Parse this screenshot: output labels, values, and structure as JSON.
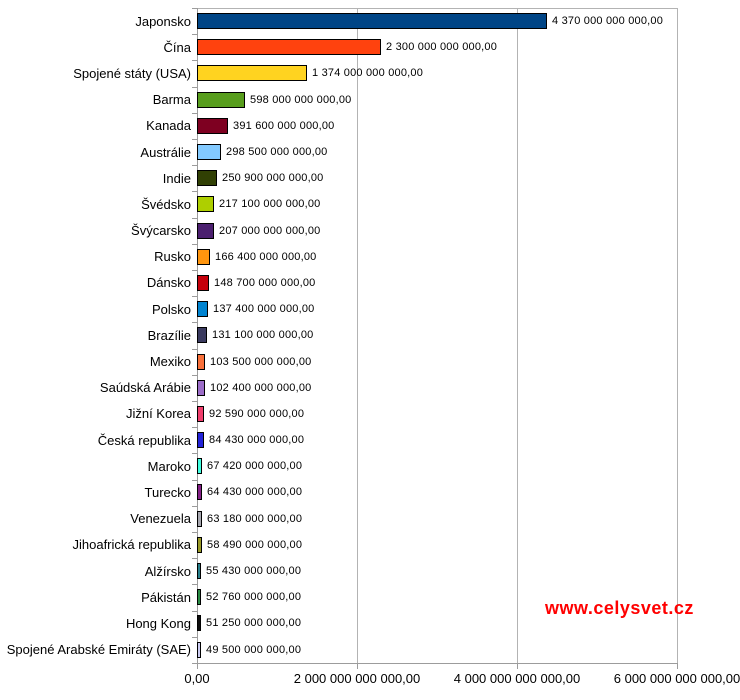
{
  "chart_data": {
    "type": "bar",
    "orientation": "horizontal",
    "title": "",
    "xlabel": "",
    "ylabel": "",
    "xlim": [
      0,
      6000000000000
    ],
    "grid": true,
    "legend": false,
    "number_format": "czech (space thousands, comma decimals)",
    "categories": [
      "Japonsko",
      "Čína",
      "Spojené státy (USA)",
      "Barma",
      "Kanada",
      "Austrálie",
      "Indie",
      "Švédsko",
      "Švýcarsko",
      "Rusko",
      "Dánsko",
      "Polsko",
      "Brazílie",
      "Mexiko",
      "Saúdská Arábie",
      "Jižní Korea",
      "Česká republika",
      "Maroko",
      "Turecko",
      "Venezuela",
      "Jihoafrická republika",
      "Alžírsko",
      "Pákistán",
      "Hong Kong",
      "Spojené Arabské Emiráty (SAE)"
    ],
    "values": [
      4370000000000,
      2300000000000,
      1374000000000,
      598000000000,
      391600000000,
      298500000000,
      250900000000,
      217100000000,
      207000000000,
      166400000000,
      148700000000,
      137400000000,
      131100000000,
      103500000000,
      102400000000,
      92590000000,
      84430000000,
      67420000000,
      64430000000,
      63180000000,
      58490000000,
      55430000000,
      52760000000,
      51250000000,
      49500000000
    ],
    "value_labels": [
      "4 370 000 000 000,00",
      "2 300 000 000 000,00",
      "1 374 000 000 000,00",
      "598 000 000 000,00",
      "391 600 000 000,00",
      "298 500 000 000,00",
      "250 900 000 000,00",
      "217 100 000 000,00",
      "207 000 000 000,00",
      "166 400 000 000,00",
      "148 700 000 000,00",
      "137 400 000 000,00",
      "131 100 000 000,00",
      "103 500 000 000,00",
      "102 400 000 000,00",
      "92 590 000 000,00",
      "84 430 000 000,00",
      "67 420 000 000,00",
      "64 430 000 000,00",
      "63 180 000 000,00",
      "58 490 000 000,00",
      "55 430 000 000,00",
      "52 760 000 000,00",
      "51 250 000 000,00",
      "49 500 000 000,00"
    ],
    "bar_colors": [
      "#004586",
      "#ff420e",
      "#ffd320",
      "#579d1c",
      "#7e0021",
      "#83caff",
      "#314004",
      "#aecf00",
      "#4b1f6f",
      "#ff950e",
      "#c5000b",
      "#0084d1",
      "#3a3a5f",
      "#f9703a",
      "#9c6dc8",
      "#f03e6c",
      "#2222d8",
      "#40ffe0",
      "#852187",
      "#a8a8b0",
      "#9a9a28",
      "#28808c",
      "#2a8c44",
      "#0d0d0d",
      "#ccccf2"
    ],
    "x_ticks": [
      {
        "value": 0,
        "label": "0,00"
      },
      {
        "value": 2000000000000,
        "label": "2 000 000 000 000,00"
      },
      {
        "value": 4000000000000,
        "label": "4 000 000 000 000,00"
      },
      {
        "value": 6000000000000,
        "label": "6 000 000 000 000,00"
      }
    ]
  },
  "watermark": {
    "text": "www.celysvet.cz",
    "color": "#ff0000"
  },
  "colors": {
    "background": "#ffffff",
    "axis": "#9c9c9c",
    "gridline": "#b3b3b3",
    "bar_border": "#000000",
    "text": "#000000"
  }
}
